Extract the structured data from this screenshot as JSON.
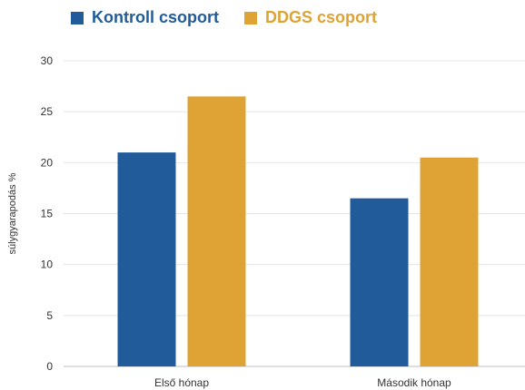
{
  "chart_data": {
    "type": "bar",
    "categories": [
      "Első hónap",
      "Második hónap"
    ],
    "series": [
      {
        "name": "Kontroll csoport",
        "values": [
          21.0,
          16.5
        ],
        "color": "#215b9a"
      },
      {
        "name": "DDGS csoport",
        "values": [
          26.5,
          20.5
        ],
        "color": "#dea235"
      }
    ],
    "title": "",
    "xlabel": "",
    "ylabel": "súlygyarapodás %",
    "ylim": [
      0,
      30
    ],
    "yticks": [
      0,
      5,
      10,
      15,
      20,
      25,
      30
    ],
    "grid": true,
    "legend_position": "top-left"
  }
}
